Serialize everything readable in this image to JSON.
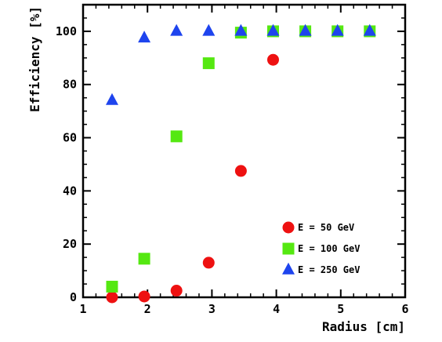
{
  "chart_data": {
    "type": "scatter",
    "title": "",
    "xlabel": "Radius [cm]",
    "ylabel": "Efficiency [%]",
    "xlim": [
      1,
      6
    ],
    "ylim": [
      0,
      110
    ],
    "xticks": [
      1,
      2,
      3,
      4,
      5,
      6
    ],
    "yticks": [
      0,
      20,
      40,
      60,
      80,
      100
    ],
    "grid": false,
    "legend_position": "bottom-right",
    "series": [
      {
        "name": "E = 50 GeV",
        "marker": "circle",
        "color": "#ee1111",
        "x": [
          1.45,
          1.95,
          2.45,
          2.95,
          3.45,
          3.95
        ],
        "y": [
          0,
          0.3,
          2.5,
          13,
          47.5,
          89.3
        ]
      },
      {
        "name": "E = 100 GeV",
        "marker": "square",
        "color": "#55e811",
        "x": [
          1.45,
          1.95,
          2.45,
          2.95,
          3.45,
          3.95,
          4.45,
          4.95,
          5.45
        ],
        "y": [
          4,
          14.5,
          60.5,
          88,
          99.5,
          100,
          100,
          100,
          100
        ]
      },
      {
        "name": "E = 250 GeV",
        "marker": "triangle",
        "color": "#1e44ee",
        "x": [
          1.45,
          1.95,
          2.45,
          2.95,
          3.45,
          3.95,
          4.45,
          4.95,
          5.45
        ],
        "y": [
          74,
          97.5,
          100,
          100,
          100,
          100,
          100,
          100,
          100
        ]
      }
    ]
  }
}
